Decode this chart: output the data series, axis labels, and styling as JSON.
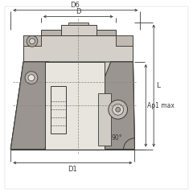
{
  "bg_color": "#ffffff",
  "line_color": "#3a3a3a",
  "dim_color": "#3a3a3a",
  "fill_light": "#d4cfc8",
  "fill_mid": "#b8b2aa",
  "fill_dark": "#9a9590",
  "fill_white": "#e8e4de",
  "labels": {
    "D6": "D6",
    "D": "D",
    "D1": "D1",
    "L": "L",
    "Ap1max": "Ap1 max",
    "angle": "90°"
  },
  "figsize": [
    2.4,
    2.4
  ],
  "dpi": 100
}
